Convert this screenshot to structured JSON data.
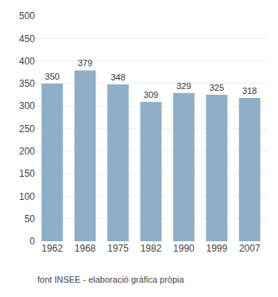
{
  "chart_data": {
    "type": "bar",
    "categories": [
      "1962",
      "1968",
      "1975",
      "1982",
      "1990",
      "1999",
      "2007"
    ],
    "values": [
      350,
      379,
      348,
      309,
      329,
      325,
      318
    ],
    "color": "#8FAFC8",
    "ylim": [
      0,
      500
    ],
    "yticks": [
      0,
      50,
      100,
      150,
      200,
      250,
      300,
      350,
      400,
      450,
      500
    ],
    "grid": true,
    "data_labels": true,
    "caption": "font INSEE - elaboració gràfica pròpia"
  }
}
